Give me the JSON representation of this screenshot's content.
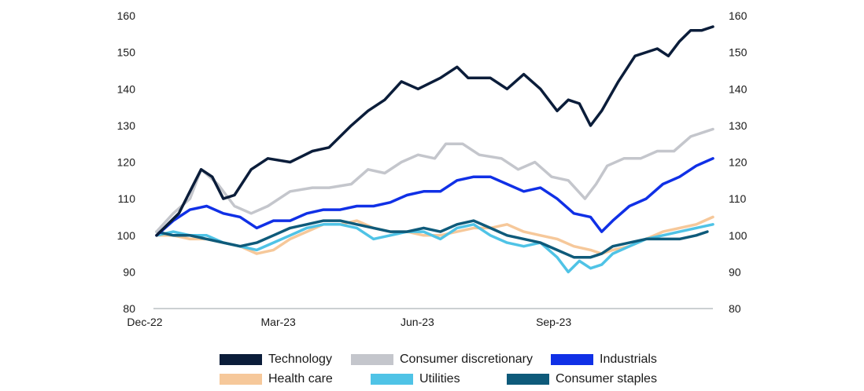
{
  "chart_data": {
    "type": "line",
    "title": "",
    "xlabel": "",
    "ylabel": "",
    "ylim": [
      80,
      160
    ],
    "y_ticks": [
      "160",
      "150",
      "140",
      "130",
      "120",
      "110",
      "100",
      "90",
      "80"
    ],
    "y_tick_values": [
      160,
      150,
      140,
      130,
      120,
      110,
      100,
      90,
      80
    ],
    "x_ticks": [
      {
        "label": "Dec-22",
        "t": 0
      },
      {
        "label": "Mar-23",
        "t": 0.24
      },
      {
        "label": "Jun-23",
        "t": 0.49
      },
      {
        "label": "Sep-23",
        "t": 0.735
      }
    ],
    "grid": false,
    "series": [
      {
        "name": "Technology",
        "color": "#0b1d3a",
        "points": [
          [
            0,
            100
          ],
          [
            0.02,
            103
          ],
          [
            0.04,
            106
          ],
          [
            0.06,
            112
          ],
          [
            0.08,
            118
          ],
          [
            0.1,
            116
          ],
          [
            0.12,
            110
          ],
          [
            0.14,
            111
          ],
          [
            0.17,
            118
          ],
          [
            0.2,
            121
          ],
          [
            0.24,
            120
          ],
          [
            0.28,
            123
          ],
          [
            0.31,
            124
          ],
          [
            0.35,
            130
          ],
          [
            0.38,
            134
          ],
          [
            0.41,
            137
          ],
          [
            0.44,
            142
          ],
          [
            0.47,
            140
          ],
          [
            0.51,
            143
          ],
          [
            0.54,
            146
          ],
          [
            0.56,
            143
          ],
          [
            0.6,
            143
          ],
          [
            0.63,
            140
          ],
          [
            0.66,
            144
          ],
          [
            0.69,
            140
          ],
          [
            0.72,
            134
          ],
          [
            0.74,
            137
          ],
          [
            0.76,
            136
          ],
          [
            0.78,
            130
          ],
          [
            0.8,
            134
          ],
          [
            0.83,
            142
          ],
          [
            0.86,
            149
          ],
          [
            0.88,
            150
          ],
          [
            0.9,
            151
          ],
          [
            0.92,
            149
          ],
          [
            0.94,
            153
          ],
          [
            0.96,
            156
          ],
          [
            0.98,
            156
          ],
          [
            1.0,
            157
          ]
        ]
      },
      {
        "name": "Consumer discretionary",
        "color": "#c4c6cc",
        "points": [
          [
            0,
            101
          ],
          [
            0.03,
            106
          ],
          [
            0.06,
            110
          ],
          [
            0.08,
            118
          ],
          [
            0.11,
            114
          ],
          [
            0.14,
            108
          ],
          [
            0.17,
            106
          ],
          [
            0.2,
            108
          ],
          [
            0.24,
            112
          ],
          [
            0.28,
            113
          ],
          [
            0.31,
            113
          ],
          [
            0.35,
            114
          ],
          [
            0.38,
            118
          ],
          [
            0.41,
            117
          ],
          [
            0.44,
            120
          ],
          [
            0.47,
            122
          ],
          [
            0.5,
            121
          ],
          [
            0.52,
            125
          ],
          [
            0.55,
            125
          ],
          [
            0.58,
            122
          ],
          [
            0.62,
            121
          ],
          [
            0.65,
            118
          ],
          [
            0.68,
            120
          ],
          [
            0.71,
            116
          ],
          [
            0.74,
            115
          ],
          [
            0.77,
            110
          ],
          [
            0.79,
            114
          ],
          [
            0.81,
            119
          ],
          [
            0.84,
            121
          ],
          [
            0.87,
            121
          ],
          [
            0.9,
            123
          ],
          [
            0.93,
            123
          ],
          [
            0.96,
            127
          ],
          [
            1.0,
            129
          ]
        ]
      },
      {
        "name": "Industrials",
        "color": "#1030e6",
        "points": [
          [
            0,
            100
          ],
          [
            0.03,
            104
          ],
          [
            0.06,
            107
          ],
          [
            0.09,
            108
          ],
          [
            0.12,
            106
          ],
          [
            0.15,
            105
          ],
          [
            0.18,
            102
          ],
          [
            0.21,
            104
          ],
          [
            0.24,
            104
          ],
          [
            0.27,
            106
          ],
          [
            0.3,
            107
          ],
          [
            0.33,
            107
          ],
          [
            0.36,
            108
          ],
          [
            0.39,
            108
          ],
          [
            0.42,
            109
          ],
          [
            0.45,
            111
          ],
          [
            0.48,
            112
          ],
          [
            0.51,
            112
          ],
          [
            0.54,
            115
          ],
          [
            0.57,
            116
          ],
          [
            0.6,
            116
          ],
          [
            0.63,
            114
          ],
          [
            0.66,
            112
          ],
          [
            0.69,
            113
          ],
          [
            0.72,
            110
          ],
          [
            0.75,
            106
          ],
          [
            0.78,
            105
          ],
          [
            0.8,
            101
          ],
          [
            0.82,
            104
          ],
          [
            0.85,
            108
          ],
          [
            0.88,
            110
          ],
          [
            0.91,
            114
          ],
          [
            0.94,
            116
          ],
          [
            0.97,
            119
          ],
          [
            1.0,
            121
          ]
        ]
      },
      {
        "name": "Health care",
        "color": "#f6c89a",
        "points": [
          [
            0,
            100
          ],
          [
            0.03,
            100
          ],
          [
            0.06,
            99
          ],
          [
            0.09,
            99
          ],
          [
            0.12,
            98
          ],
          [
            0.15,
            97
          ],
          [
            0.18,
            95
          ],
          [
            0.21,
            96
          ],
          [
            0.24,
            99
          ],
          [
            0.27,
            101
          ],
          [
            0.3,
            103
          ],
          [
            0.33,
            103
          ],
          [
            0.36,
            104
          ],
          [
            0.39,
            102
          ],
          [
            0.42,
            101
          ],
          [
            0.45,
            101
          ],
          [
            0.48,
            100
          ],
          [
            0.51,
            100
          ],
          [
            0.54,
            101
          ],
          [
            0.57,
            102
          ],
          [
            0.6,
            102
          ],
          [
            0.63,
            103
          ],
          [
            0.66,
            101
          ],
          [
            0.69,
            100
          ],
          [
            0.72,
            99
          ],
          [
            0.75,
            97
          ],
          [
            0.78,
            96
          ],
          [
            0.8,
            95
          ],
          [
            0.82,
            96
          ],
          [
            0.85,
            97
          ],
          [
            0.88,
            99
          ],
          [
            0.91,
            101
          ],
          [
            0.94,
            102
          ],
          [
            0.97,
            103
          ],
          [
            1.0,
            105
          ]
        ]
      },
      {
        "name": "Utilities",
        "color": "#4fc3e6",
        "points": [
          [
            0,
            100
          ],
          [
            0.03,
            101
          ],
          [
            0.06,
            100
          ],
          [
            0.09,
            100
          ],
          [
            0.12,
            98
          ],
          [
            0.15,
            97
          ],
          [
            0.18,
            96
          ],
          [
            0.21,
            98
          ],
          [
            0.24,
            100
          ],
          [
            0.27,
            102
          ],
          [
            0.3,
            103
          ],
          [
            0.33,
            103
          ],
          [
            0.36,
            102
          ],
          [
            0.39,
            99
          ],
          [
            0.42,
            100
          ],
          [
            0.45,
            101
          ],
          [
            0.48,
            101
          ],
          [
            0.51,
            99
          ],
          [
            0.54,
            102
          ],
          [
            0.57,
            103
          ],
          [
            0.6,
            100
          ],
          [
            0.63,
            98
          ],
          [
            0.66,
            97
          ],
          [
            0.69,
            98
          ],
          [
            0.72,
            94
          ],
          [
            0.74,
            90
          ],
          [
            0.76,
            93
          ],
          [
            0.78,
            91
          ],
          [
            0.8,
            92
          ],
          [
            0.82,
            95
          ],
          [
            0.85,
            97
          ],
          [
            0.88,
            99
          ],
          [
            0.91,
            100
          ],
          [
            0.94,
            101
          ],
          [
            0.97,
            102
          ],
          [
            1.0,
            103
          ]
        ]
      },
      {
        "name": "Consumer staples",
        "color": "#0e5a7a",
        "points": [
          [
            0,
            101
          ],
          [
            0.03,
            100
          ],
          [
            0.06,
            100
          ],
          [
            0.09,
            99
          ],
          [
            0.12,
            98
          ],
          [
            0.15,
            97
          ],
          [
            0.18,
            98
          ],
          [
            0.21,
            100
          ],
          [
            0.24,
            102
          ],
          [
            0.27,
            103
          ],
          [
            0.3,
            104
          ],
          [
            0.33,
            104
          ],
          [
            0.36,
            103
          ],
          [
            0.39,
            102
          ],
          [
            0.42,
            101
          ],
          [
            0.45,
            101
          ],
          [
            0.48,
            102
          ],
          [
            0.51,
            101
          ],
          [
            0.54,
            103
          ],
          [
            0.57,
            104
          ],
          [
            0.6,
            102
          ],
          [
            0.63,
            100
          ],
          [
            0.66,
            99
          ],
          [
            0.69,
            98
          ],
          [
            0.72,
            96
          ],
          [
            0.75,
            94
          ],
          [
            0.78,
            94
          ],
          [
            0.8,
            95
          ],
          [
            0.82,
            97
          ],
          [
            0.85,
            98
          ],
          [
            0.88,
            99
          ],
          [
            0.91,
            99
          ],
          [
            0.94,
            99
          ],
          [
            0.97,
            100
          ],
          [
            0.99,
            101
          ]
        ]
      }
    ]
  }
}
